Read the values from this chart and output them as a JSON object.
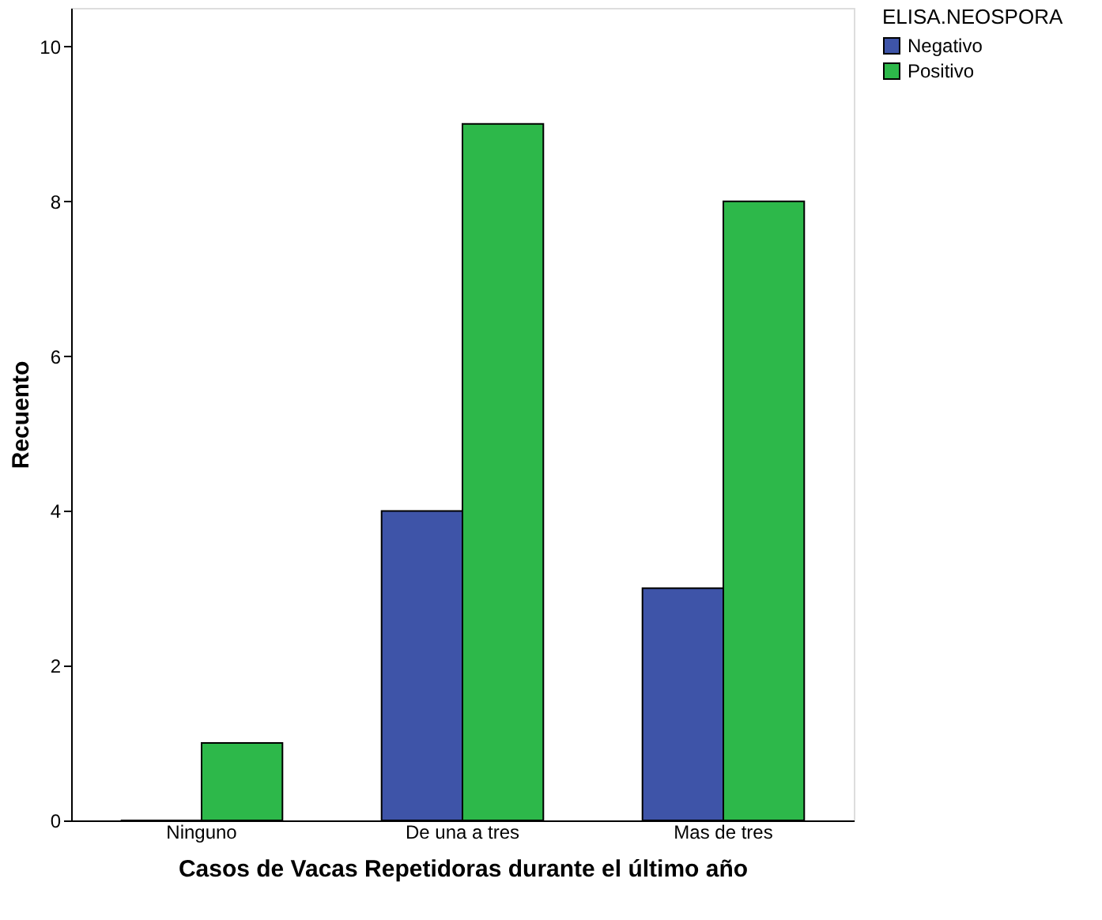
{
  "chart_data": {
    "type": "bar",
    "xlabel": "Casos de Vacas Repetidoras durante el último año",
    "ylabel": "Recuento",
    "legend_title": "ELISA.NEOSPORA",
    "categories": [
      "Ninguno",
      "De una a tres",
      "Mas de tres"
    ],
    "series": [
      {
        "name": "Negativo",
        "color": "#3e54a8",
        "values": [
          0,
          4,
          3
        ]
      },
      {
        "name": "Positivo",
        "color": "#2db84a",
        "values": [
          1,
          9,
          8
        ]
      }
    ],
    "ylim": [
      0,
      10.5
    ],
    "yticks": [
      0,
      2,
      4,
      6,
      8,
      10
    ],
    "grid": false,
    "legend": "top right"
  }
}
